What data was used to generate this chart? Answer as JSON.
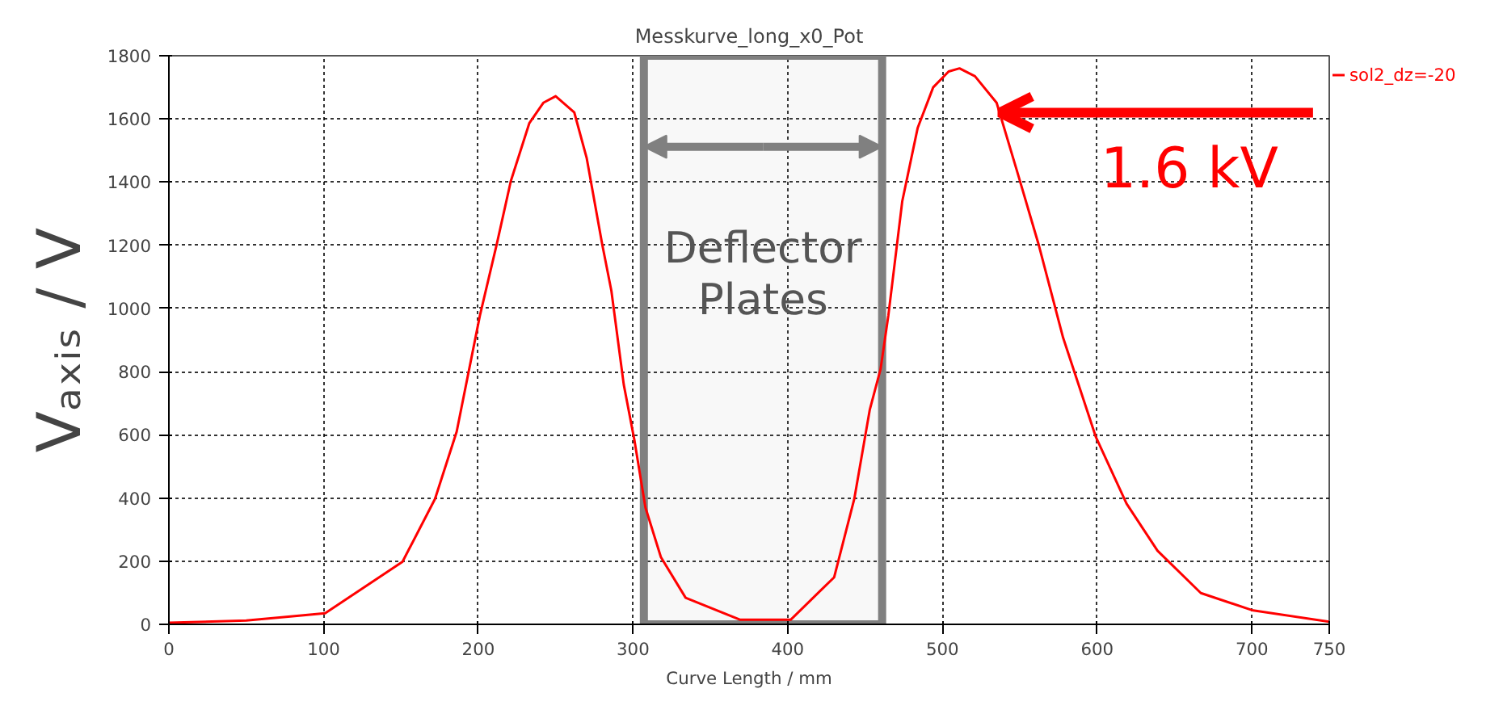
{
  "chart_data": {
    "type": "line",
    "title": "Messkurve_long_x0_Pot",
    "xlabel": "Curve Length / mm",
    "ylabel": "Vₐₓᵢₛ / V",
    "xlim": [
      0,
      750
    ],
    "xticks": [
      0,
      100,
      200,
      300,
      400,
      500,
      600,
      700,
      750
    ],
    "ylim": [
      0,
      1800
    ],
    "yticks": [
      0,
      200,
      400,
      600,
      800,
      1000,
      1200,
      1400,
      1600,
      1800
    ],
    "grid": true,
    "legend": "top right",
    "marker": "none",
    "line_style": "solid",
    "series": [
      {
        "name": "sol2_dz=-20",
        "color": "#ff0000",
        "x": [
          0,
          50,
          101,
          151,
          172,
          186,
          201,
          212,
          221,
          233,
          242,
          250,
          262,
          270,
          280,
          286,
          294,
          301,
          308,
          318,
          334,
          369,
          402,
          430,
          443,
          453,
          460,
          465,
          474,
          484,
          494,
          504,
          511,
          521,
          535,
          548,
          562,
          578,
          599,
          619,
          639,
          667,
          700,
          750
        ],
        "values": [
          5,
          12,
          35,
          198,
          397,
          610,
          977,
          1205,
          1403,
          1587,
          1651,
          1672,
          1621,
          1477,
          1205,
          1056,
          759,
          580,
          370,
          213,
          84,
          15,
          15,
          149,
          397,
          679,
          808,
          977,
          1339,
          1572,
          1700,
          1750,
          1760,
          1735,
          1651,
          1438,
          1205,
          907,
          595,
          382,
          233,
          99,
          45,
          8
        ]
      }
    ],
    "bands": [
      {
        "axis": "x",
        "from": 307,
        "to": 461,
        "label": "Deflector Plates",
        "color": "#808080"
      }
    ],
    "annotations": [
      {
        "text": "1.6 kV",
        "x": 537,
        "y": 1620
      }
    ]
  }
}
